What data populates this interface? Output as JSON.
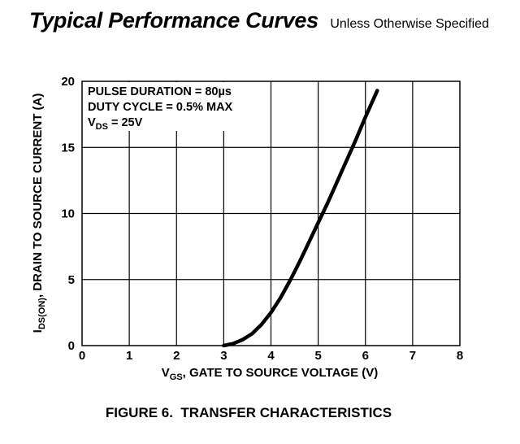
{
  "header": {
    "title": "Typical Performance Curves",
    "subtitle": "Unless Otherwise Specified"
  },
  "figure_caption": "FIGURE 6.  TRANSFER CHARACTERISTICS",
  "chart_data": {
    "type": "line",
    "xlabel": {
      "main": "V",
      "sub": "GS",
      "rest": ", GATE TO SOURCE VOLTAGE (V)"
    },
    "ylabel": {
      "main": "I",
      "sub": "DS(ON)",
      "rest": ", DRAIN TO SOURCE CURRENT (A)"
    },
    "xlim": [
      0,
      8
    ],
    "ylim": [
      0,
      20
    ],
    "x_ticks": [
      "0",
      "1",
      "2",
      "3",
      "4",
      "5",
      "6",
      "7",
      "8"
    ],
    "y_ticks": [
      "0",
      "5",
      "10",
      "15",
      "20"
    ],
    "grid": true,
    "annotations": [
      {
        "text": "PULSE DURATION = 80µs"
      },
      {
        "text": "DUTY CYCLE = 0.5% MAX"
      },
      {
        "main": "V",
        "sub": "DS",
        "rest": " = 25V"
      }
    ],
    "series": [
      {
        "x": [
          3.0,
          3.2,
          3.4,
          3.6,
          3.8,
          4.0,
          4.2,
          4.4,
          4.6,
          4.8,
          5.0,
          5.2,
          5.4,
          5.6,
          5.8,
          6.0,
          6.2,
          6.25
        ],
        "y": [
          0,
          0.15,
          0.45,
          0.9,
          1.6,
          2.5,
          3.6,
          4.9,
          6.3,
          7.8,
          9.3,
          10.8,
          12.4,
          14.0,
          15.6,
          17.3,
          18.9,
          19.3
        ]
      }
    ]
  }
}
